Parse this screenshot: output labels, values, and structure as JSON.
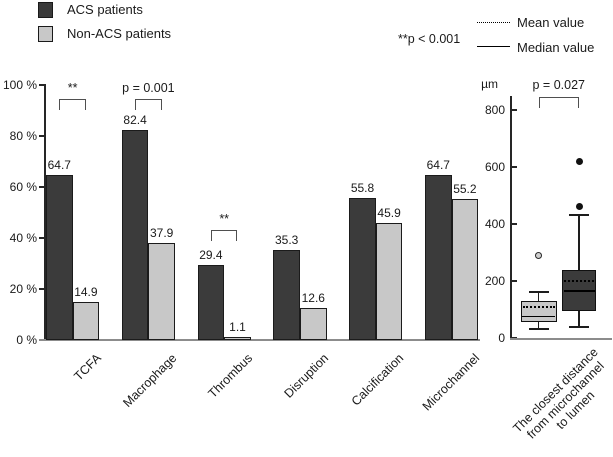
{
  "figure": {
    "legend": {
      "items": [
        {
          "label": "ACS patients",
          "color": "#3b3b3b"
        },
        {
          "label": "Non-ACS patients",
          "color": "#c8c8c8"
        }
      ]
    },
    "stat_legend": {
      "note": "**p < 0.001",
      "lines": [
        {
          "style": "dotted",
          "label": "Mean value"
        },
        {
          "style": "solid",
          "label": "Median value"
        }
      ]
    }
  },
  "chart_data": [
    {
      "type": "bar",
      "title": "",
      "categories": [
        "TCFA",
        "Macrophage",
        "Thrombus",
        "Disruption",
        "Calcification",
        "Microchannel"
      ],
      "series": [
        {
          "name": "ACS patients",
          "color": "#3b3b3b",
          "values": [
            64.7,
            82.4,
            29.4,
            35.3,
            55.8,
            64.7
          ]
        },
        {
          "name": "Non-ACS patients",
          "color": "#c8c8c8",
          "values": [
            14.9,
            37.9,
            1.1,
            12.6,
            45.9,
            55.2
          ]
        }
      ],
      "ylabel": "%",
      "ylim": [
        0,
        100
      ],
      "yticks": [
        0,
        20,
        40,
        60,
        80,
        100
      ],
      "ytick_suffix": " %",
      "grid": false,
      "legend_position": "top-left",
      "annotations": [
        {
          "category": "TCFA",
          "label": "**",
          "y": 94.5
        },
        {
          "category": "Macrophage",
          "label": "p = 0.001",
          "y": 94.5
        },
        {
          "category": "Thrombus",
          "label": "**",
          "y": 43
        }
      ]
    },
    {
      "type": "boxplot",
      "unit": "µm",
      "ylim": [
        0,
        800
      ],
      "yticks": [
        0,
        200,
        400,
        600,
        800
      ],
      "grid": false,
      "annotation": {
        "label": "p = 0.027",
        "y": 845
      },
      "xlabel_lines": [
        "The closest distance",
        "from microchannel",
        "to lumen"
      ],
      "boxes": [
        {
          "name": "Non-ACS patients",
          "color": "#c8c8c8",
          "whisker_low": 30,
          "q1": 55,
          "median": 75,
          "mean": 108,
          "q3": 130,
          "whisker_high": 160,
          "outliers": [
            {
              "value": 290,
              "style": "open"
            }
          ]
        },
        {
          "name": "ACS patients",
          "color": "#3b3b3b",
          "whisker_low": 40,
          "q1": 95,
          "median": 165,
          "mean": 200,
          "q3": 240,
          "whisker_high": 430,
          "outliers": [
            {
              "value": 460,
              "style": "filled"
            },
            {
              "value": 620,
              "style": "filled"
            }
          ]
        }
      ]
    }
  ]
}
